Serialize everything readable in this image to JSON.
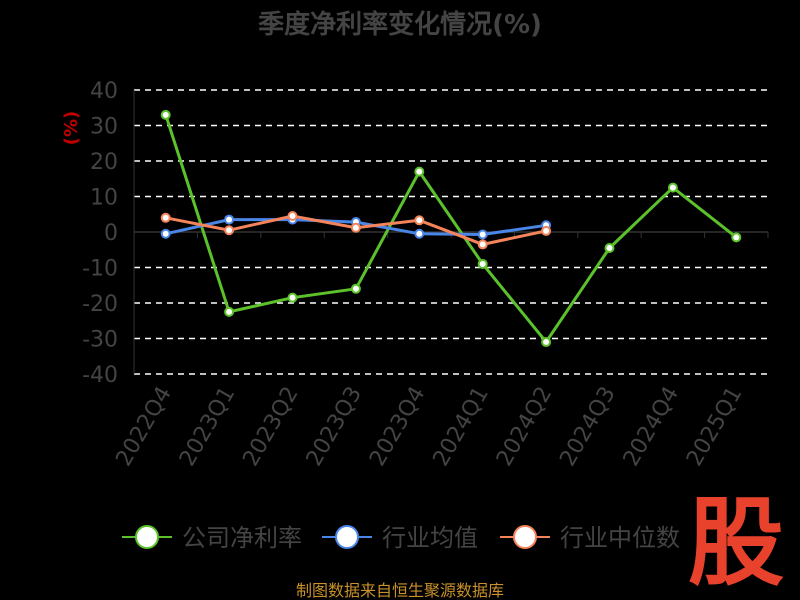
{
  "chart_data": {
    "type": "line",
    "title": "季度净利率变化情况(%)",
    "ylabel": "(%)",
    "ylim": [
      -40,
      40
    ],
    "yticks": [
      -40,
      -30,
      -20,
      -10,
      0,
      10,
      20,
      30,
      40
    ],
    "categories": [
      "2022Q4",
      "2023Q1",
      "2023Q2",
      "2023Q3",
      "2023Q4",
      "2024Q1",
      "2024Q2",
      "2024Q3",
      "2024Q4",
      "2025Q1"
    ],
    "series": [
      {
        "name": "公司净利率",
        "color": "#5cc22c",
        "values": [
          33,
          -22.5,
          -18.5,
          -16,
          17,
          -9,
          -31,
          -4.5,
          12.5,
          -1.5
        ]
      },
      {
        "name": "行业均值",
        "color": "#4a86e8",
        "values": [
          -0.5,
          3.5,
          3.5,
          2.8,
          -0.5,
          -0.7,
          1.9,
          null,
          null,
          null
        ]
      },
      {
        "name": "行业中位数",
        "color": "#f5845a",
        "values": [
          4,
          0.5,
          4.5,
          1.2,
          3.3,
          -3.5,
          0.3,
          null,
          null,
          null
        ]
      }
    ],
    "grid": true,
    "legend_position": "bottom"
  },
  "footer": {
    "source": "制图数据来自恒生聚源数据库"
  },
  "brand": {
    "logo_char": "股",
    "color": "#e8412c"
  }
}
